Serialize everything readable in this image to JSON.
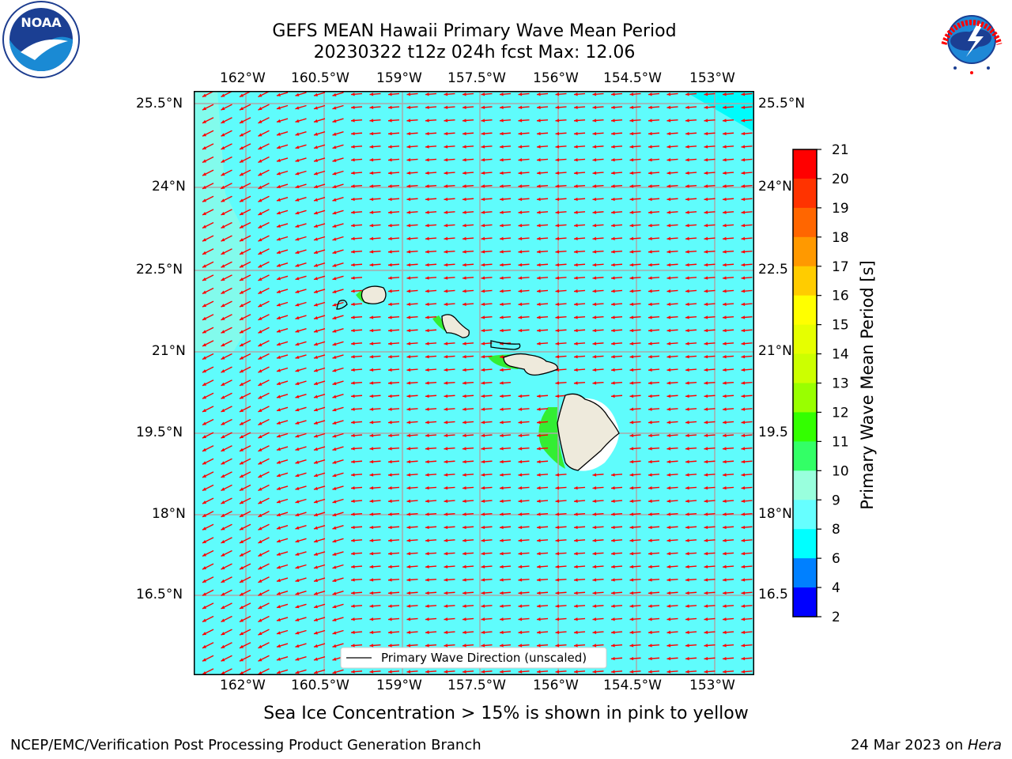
{
  "title_line1": "GEFS MEAN Hawaii Primary Wave Mean Period",
  "title_line2": "20230322 t12z 024h fcst   Max: 12.06",
  "lon_labels": [
    "162°W",
    "160.5°W",
    "159°W",
    "157.5°W",
    "156°W",
    "154.5°W",
    "153°W"
  ],
  "lat_labels_left": [
    "25.5°N",
    "24°N",
    "22.5°N",
    "21°N",
    "19.5°N",
    "18°N",
    "16.5°N"
  ],
  "lat_labels_right": [
    "25.5°N",
    "24°N",
    "22.5",
    "21°N",
    "19.5",
    "18°N",
    "16.5"
  ],
  "legend_label": "Primary Wave Direction (unscaled)",
  "colorbar": {
    "label": "Primary Wave Mean Period [s]",
    "ticks": [
      "21",
      "20",
      "19",
      "18",
      "17",
      "16",
      "15",
      "14",
      "13",
      "12",
      "11",
      "10",
      "9",
      "8",
      "6",
      "4",
      "2"
    ],
    "colors": [
      "#ff0000",
      "#ff3300",
      "#ff6600",
      "#ff9900",
      "#ffcc00",
      "#ffff00",
      "#e6ff00",
      "#ccff00",
      "#99ff00",
      "#33ff00",
      "#33ff66",
      "#99ffdd",
      "#66ffff",
      "#00ffff",
      "#0080ff",
      "#0000ff"
    ]
  },
  "sea_ice_note": "Sea Ice Concentration > 15% is shown in pink to yellow",
  "footer_left": "NCEP/EMC/Verification Post Processing Product Generation Branch",
  "footer_right_date": "24 Mar 2023 on ",
  "footer_right_host": "Hera",
  "logo_left": "NOAA",
  "logo_right_text": "NATIONAL WEATHER SERVICE",
  "map_fill_color": "#5ffcfc",
  "arrow_color": "#ff0000",
  "land_color": "#eeeadc"
}
